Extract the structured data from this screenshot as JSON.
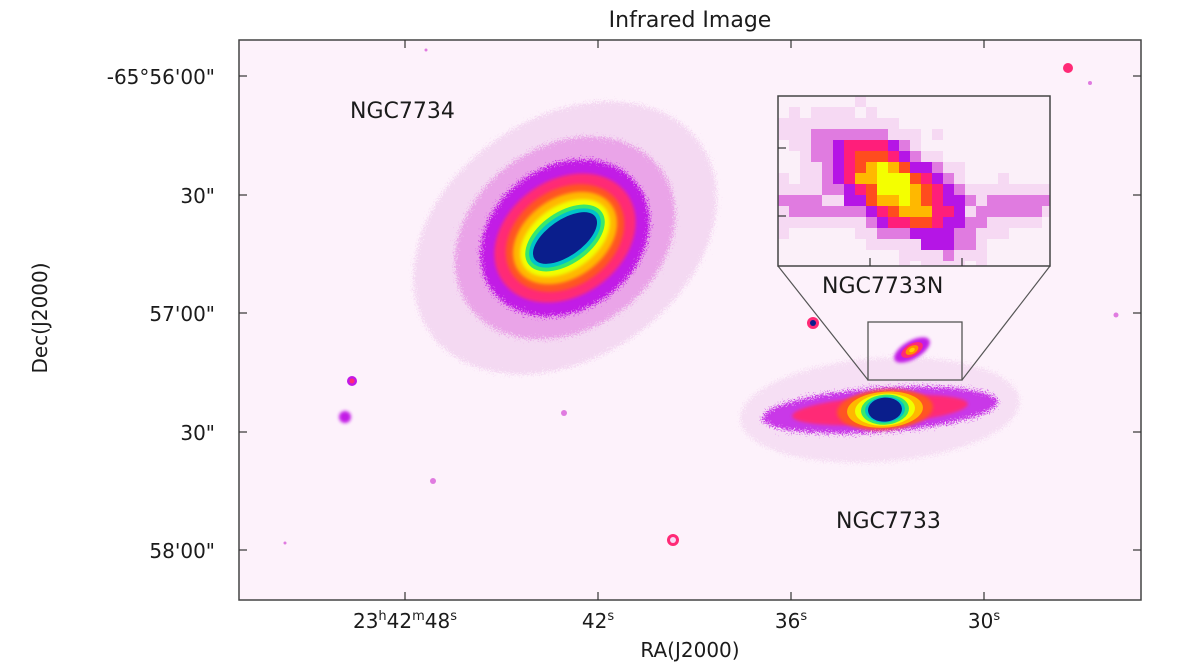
{
  "figure": {
    "title": "Infrared Image",
    "x_axis_label": "RA(J2000)",
    "y_axis_label": "Dec(J2000)",
    "x_ticks": [
      {
        "main": "23",
        "h": "h",
        "mid": "42",
        "m": "m",
        "tail": "48",
        "s": "s"
      },
      {
        "main": "42",
        "s": "s"
      },
      {
        "main": "36",
        "s": "s"
      },
      {
        "main": "30",
        "s": "s"
      }
    ],
    "y_ticks": [
      "-65°56'00\"",
      "30\"",
      "57'00\"",
      "30\"",
      "58'00\""
    ],
    "labels": {
      "galaxy_a": "NGC7734",
      "galaxy_b": "NGC7733",
      "galaxy_b_north": "NGC7733N"
    },
    "colors": {
      "background": "#fdf2fb",
      "colormap": [
        "#f6d9f3",
        "#e07be0",
        "#b515e6",
        "#ff1e7a",
        "#ff4c1e",
        "#ffb800",
        "#f4ff00",
        "#36e86b",
        "#00c3c8",
        "#0a1e8c"
      ]
    }
  }
}
